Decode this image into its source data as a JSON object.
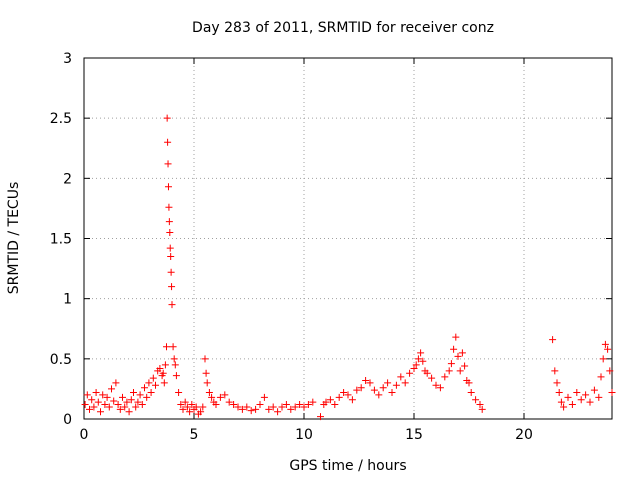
{
  "chart_data": {
    "type": "scatter",
    "title": "Day 283 of 2011, SRMTID for receiver conz",
    "xlabel": "GPS time / hours",
    "ylabel": "SRMTID / TECUs",
    "xlim": [
      0,
      24
    ],
    "ylim": [
      0,
      3
    ],
    "xticks": [
      0,
      5,
      10,
      15,
      20
    ],
    "xtick_labels": [
      "0",
      "5",
      "10",
      "15",
      "20"
    ],
    "yticks": [
      0,
      0.5,
      1,
      1.5,
      2,
      2.5,
      3
    ],
    "ytick_labels": [
      "0",
      "0.5",
      "1",
      "1.5",
      "2",
      "2.5",
      "3"
    ],
    "grid": true,
    "legend": "none",
    "marker": "plus",
    "color": "#ff0000",
    "series": [
      {
        "x": [
          0.05,
          0.15,
          0.25,
          0.35,
          0.45,
          0.55,
          0.65,
          0.75,
          0.85,
          0.95,
          1.05,
          1.15,
          1.25,
          1.35,
          1.45,
          1.55,
          1.65,
          1.75,
          1.85,
          1.95,
          2.05,
          2.15,
          2.25,
          2.35,
          2.45,
          2.55,
          2.65,
          2.75,
          2.85,
          2.95,
          3.05,
          3.15,
          3.25,
          3.35,
          3.45,
          3.55,
          3.6,
          3.65,
          3.7,
          3.75,
          3.78,
          3.8,
          3.82,
          3.84,
          3.86,
          3.88,
          3.9,
          3.92,
          3.94,
          3.96,
          3.98,
          4.0,
          4.05,
          4.1,
          4.15,
          4.2,
          4.3,
          4.4,
          4.5,
          4.6,
          4.7,
          4.8,
          4.9,
          5.0,
          5.1,
          5.2,
          5.3,
          5.4,
          5.5,
          5.55,
          5.6,
          5.7,
          5.8,
          5.9,
          6.0,
          6.2,
          6.4,
          6.6,
          6.8,
          7.0,
          7.2,
          7.4,
          7.6,
          7.8,
          8.0,
          8.2,
          8.4,
          8.6,
          8.8,
          9.0,
          9.2,
          9.4,
          9.6,
          9.8,
          10.0,
          10.2,
          10.4,
          10.75,
          10.9,
          11.0,
          11.2,
          11.4,
          11.6,
          11.8,
          12.0,
          12.2,
          12.4,
          12.6,
          12.8,
          13.0,
          13.2,
          13.4,
          13.6,
          13.8,
          14.0,
          14.2,
          14.4,
          14.6,
          14.8,
          15.0,
          15.1,
          15.2,
          15.3,
          15.4,
          15.5,
          15.6,
          15.8,
          16.0,
          16.2,
          16.4,
          16.6,
          16.7,
          16.8,
          16.9,
          17.0,
          17.1,
          17.2,
          17.3,
          17.4,
          17.5,
          17.6,
          17.8,
          18.0,
          18.1,
          21.3,
          21.4,
          21.5,
          21.6,
          21.7,
          21.8,
          22.0,
          22.2,
          22.4,
          22.6,
          22.8,
          23.0,
          23.2,
          23.4,
          23.5,
          23.6,
          23.7,
          23.8,
          23.9,
          24.0
        ],
        "y": [
          0.12,
          0.2,
          0.08,
          0.16,
          0.1,
          0.22,
          0.14,
          0.06,
          0.2,
          0.12,
          0.18,
          0.1,
          0.25,
          0.15,
          0.3,
          0.12,
          0.08,
          0.18,
          0.1,
          0.14,
          0.06,
          0.16,
          0.22,
          0.1,
          0.14,
          0.2,
          0.12,
          0.26,
          0.18,
          0.3,
          0.22,
          0.34,
          0.28,
          0.4,
          0.42,
          0.36,
          0.38,
          0.3,
          0.45,
          0.6,
          2.5,
          2.3,
          2.12,
          1.93,
          1.76,
          1.64,
          1.55,
          1.42,
          1.35,
          1.22,
          1.1,
          0.95,
          0.6,
          0.5,
          0.45,
          0.36,
          0.22,
          0.12,
          0.08,
          0.14,
          0.1,
          0.06,
          0.12,
          0.08,
          0.1,
          0.04,
          0.06,
          0.1,
          0.5,
          0.38,
          0.3,
          0.22,
          0.18,
          0.14,
          0.12,
          0.18,
          0.2,
          0.14,
          0.12,
          0.1,
          0.08,
          0.1,
          0.07,
          0.08,
          0.12,
          0.18,
          0.08,
          0.1,
          0.06,
          0.1,
          0.12,
          0.08,
          0.1,
          0.12,
          0.1,
          0.12,
          0.14,
          0.02,
          0.12,
          0.14,
          0.16,
          0.12,
          0.18,
          0.22,
          0.2,
          0.16,
          0.24,
          0.26,
          0.32,
          0.3,
          0.24,
          0.2,
          0.26,
          0.3,
          0.22,
          0.28,
          0.35,
          0.3,
          0.38,
          0.42,
          0.45,
          0.5,
          0.55,
          0.48,
          0.4,
          0.38,
          0.34,
          0.28,
          0.26,
          0.35,
          0.4,
          0.46,
          0.58,
          0.68,
          0.52,
          0.4,
          0.55,
          0.44,
          0.32,
          0.3,
          0.22,
          0.16,
          0.12,
          0.08,
          0.66,
          0.4,
          0.3,
          0.22,
          0.14,
          0.1,
          0.18,
          0.12,
          0.22,
          0.16,
          0.2,
          0.14,
          0.24,
          0.18,
          0.35,
          0.5,
          0.62,
          0.58,
          0.4,
          0.22
        ]
      }
    ]
  }
}
